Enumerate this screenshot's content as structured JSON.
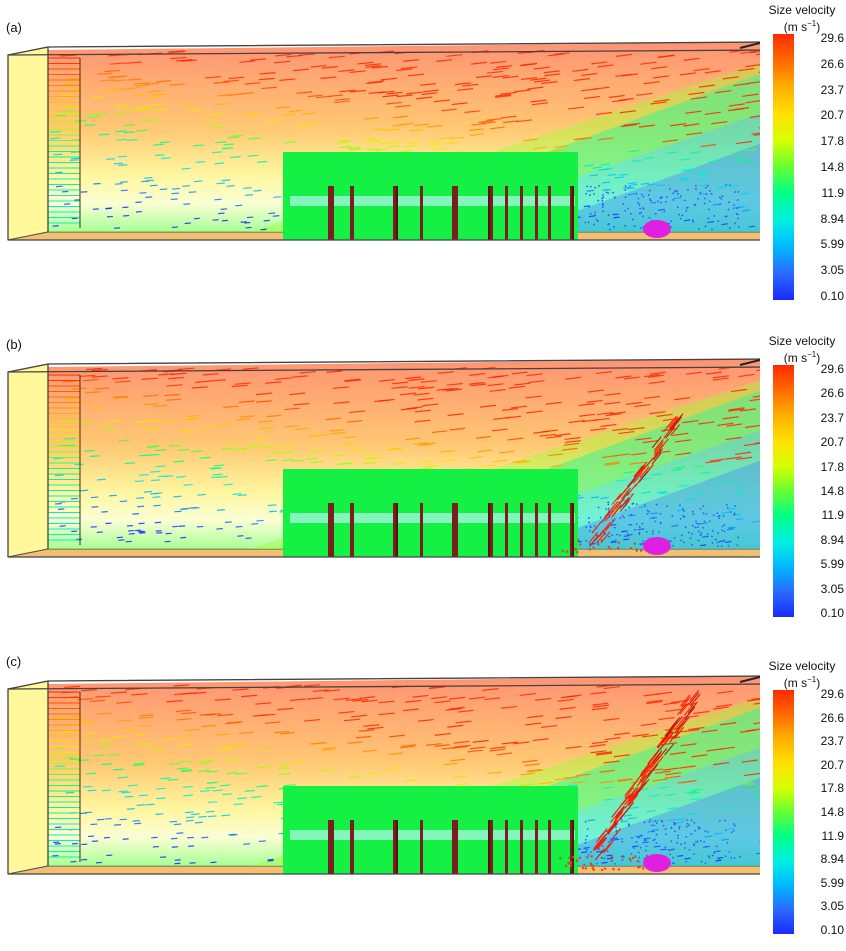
{
  "colorbar": {
    "title_line1": "Size velocity",
    "title_line2": "(m s",
    "title_exp": "−1",
    "title_close": ")",
    "ticks": [
      "29.6",
      "26.6",
      "23.7",
      "20.7",
      "17.8",
      "14.8",
      "11.9",
      "8.94",
      "5.99",
      "3.05",
      "0.10"
    ],
    "colors": [
      "#ff2a00",
      "#ff6a00",
      "#ffb000",
      "#ffe000",
      "#d8ff00",
      "#66ff33",
      "#00ff88",
      "#00f0e0",
      "#00b8ff",
      "#2a6aff",
      "#1a2aff"
    ]
  },
  "panels": [
    {
      "id": "a",
      "label": "(a)",
      "plume_extent": 0
    },
    {
      "id": "b",
      "label": "(b)",
      "plume_extent": 0.55
    },
    {
      "id": "c",
      "label": "(c)",
      "plume_extent": 1.0
    }
  ]
}
